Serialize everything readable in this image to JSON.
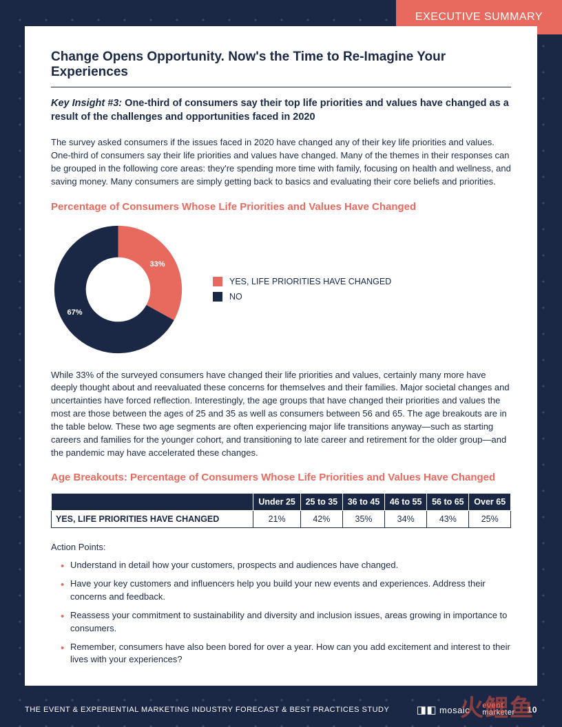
{
  "tab_label": "EXECUTIVE SUMMARY",
  "colors": {
    "navy": "#1a2845",
    "coral": "#e86a5e",
    "white": "#ffffff"
  },
  "title": "Change Opens Opportunity. Now's the Time to Re-Imagine Your Experiences",
  "insight_label": "Key Insight #3:",
  "insight_text": " One-third of consumers say their top life priorities and values have changed as a result of the challenges and opportunities faced in 2020",
  "para1": "The survey asked consumers if the issues faced in 2020 have changed any of their key life priorities and values. One-third of consumers say their life priorities and values have changed. Many of the themes in their responses can be grouped in the following core areas: they're spending more time with family, focusing on health and wellness, and saving money. Many consumers are simply getting back to basics and evaluating their core beliefs and priorities.",
  "chart_heading": "Percentage of Consumers Whose Life Priorities and Values Have Changed",
  "donut": {
    "type": "donut",
    "slices": [
      {
        "label": "33%",
        "value": 33,
        "color": "#e86a5e",
        "legend": "YES, LIFE PRIORITIES HAVE CHANGED"
      },
      {
        "label": "67%",
        "value": 67,
        "color": "#1a2845",
        "legend": "NO"
      }
    ],
    "inner_radius": 48,
    "outer_radius": 95,
    "start_angle_deg": -90,
    "label_fontsize": 11,
    "label_color": "#ffffff"
  },
  "para2": "While 33% of the surveyed consumers have changed their life priorities and values, certainly many more have deeply thought about and reevaluated these concerns for themselves and their families. Major societal changes and uncertainties have forced reflection. Interestingly, the age groups that have changed their priorities and values the most are those between the ages of 25 and 35 as well as consumers between 56 and 65. The age breakouts are in the table below. These two age segments are often experiencing major life transitions anyway—such as starting careers and families for the younger cohort, and transitioning to late career and retirement for the older group—and the pandemic may have accelerated these changes.",
  "table_heading": "Age Breakouts: Percentage of Consumers Whose Life Priorities and Values Have Changed",
  "age_table": {
    "columns": [
      "",
      "Under 25",
      "25 to 35",
      "36 to 45",
      "46 to 55",
      "56 to 65",
      "Over 65"
    ],
    "row_label": "YES, LIFE PRIORITIES HAVE CHANGED",
    "row_values": [
      "21%",
      "42%",
      "35%",
      "34%",
      "43%",
      "25%"
    ],
    "header_bg": "#1a2845",
    "header_color": "#ffffff",
    "cell_border": "#1a2845"
  },
  "action_label": "Action Points:",
  "action_points": [
    "Understand in detail how your customers, prospects and audiences have changed.",
    "Have your key customers and influencers help you build your new events and experiences. Address their concerns and feedback.",
    "Reassess your commitment to sustainability and diversity and inclusion issues, areas growing in importance to consumers.",
    "Remember, consumers have also been bored for over a year. How can you add excitement and interest to their lives with your experiences?"
  ],
  "footer": {
    "study_title": "THE EVENT & EXPERIENTIAL MARKETING INDUSTRY FORECAST & BEST PRACTICES STUDY",
    "logo1": "mosaic",
    "logo2_top": "event",
    "logo2_bottom": "marketer",
    "page_number": "10"
  },
  "watermark": "火鲤鱼"
}
